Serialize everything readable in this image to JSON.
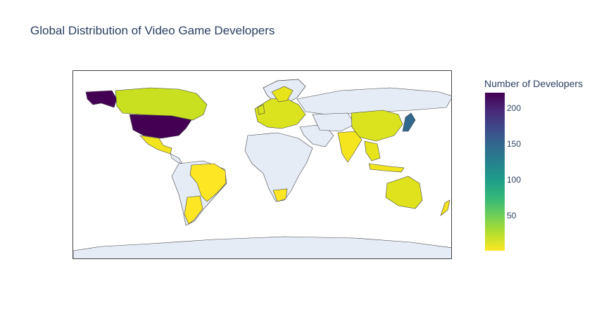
{
  "title": "Global Distribution of Video Game Developers",
  "colorbar": {
    "title": "Number of Developers",
    "ticks": [
      "50",
      "100",
      "150",
      "200"
    ],
    "tick_values": [
      50,
      100,
      150,
      200
    ],
    "range": [
      1,
      222
    ],
    "colorscale": "Viridis",
    "colors": [
      "#fde725",
      "#b5de2b",
      "#6ece58",
      "#35b779",
      "#1f9e89",
      "#26828e",
      "#31688e",
      "#3e4989",
      "#482878",
      "#440154"
    ]
  },
  "colors": {
    "land": "#e5ecf6",
    "coastline": "#444444",
    "frame": "#444444"
  },
  "chart_data": {
    "type": "choropleth",
    "projection": "natural earth",
    "values_note": "country color encodes developer count",
    "highlighted": [
      {
        "country": "United States",
        "value": 222
      },
      {
        "country": "Japan",
        "value": 150
      },
      {
        "country": "Canada",
        "value": 30
      },
      {
        "country": "Mexico",
        "value": 10
      },
      {
        "country": "Brazil",
        "value": 5
      },
      {
        "country": "Argentina",
        "value": 5
      },
      {
        "country": "United Kingdom",
        "value": 20
      },
      {
        "country": "China",
        "value": 20
      },
      {
        "country": "India",
        "value": 10
      },
      {
        "country": "Australia",
        "value": 15
      },
      {
        "country": "South Africa",
        "value": 5
      },
      {
        "country": "New Zealand",
        "value": 8
      }
    ]
  }
}
